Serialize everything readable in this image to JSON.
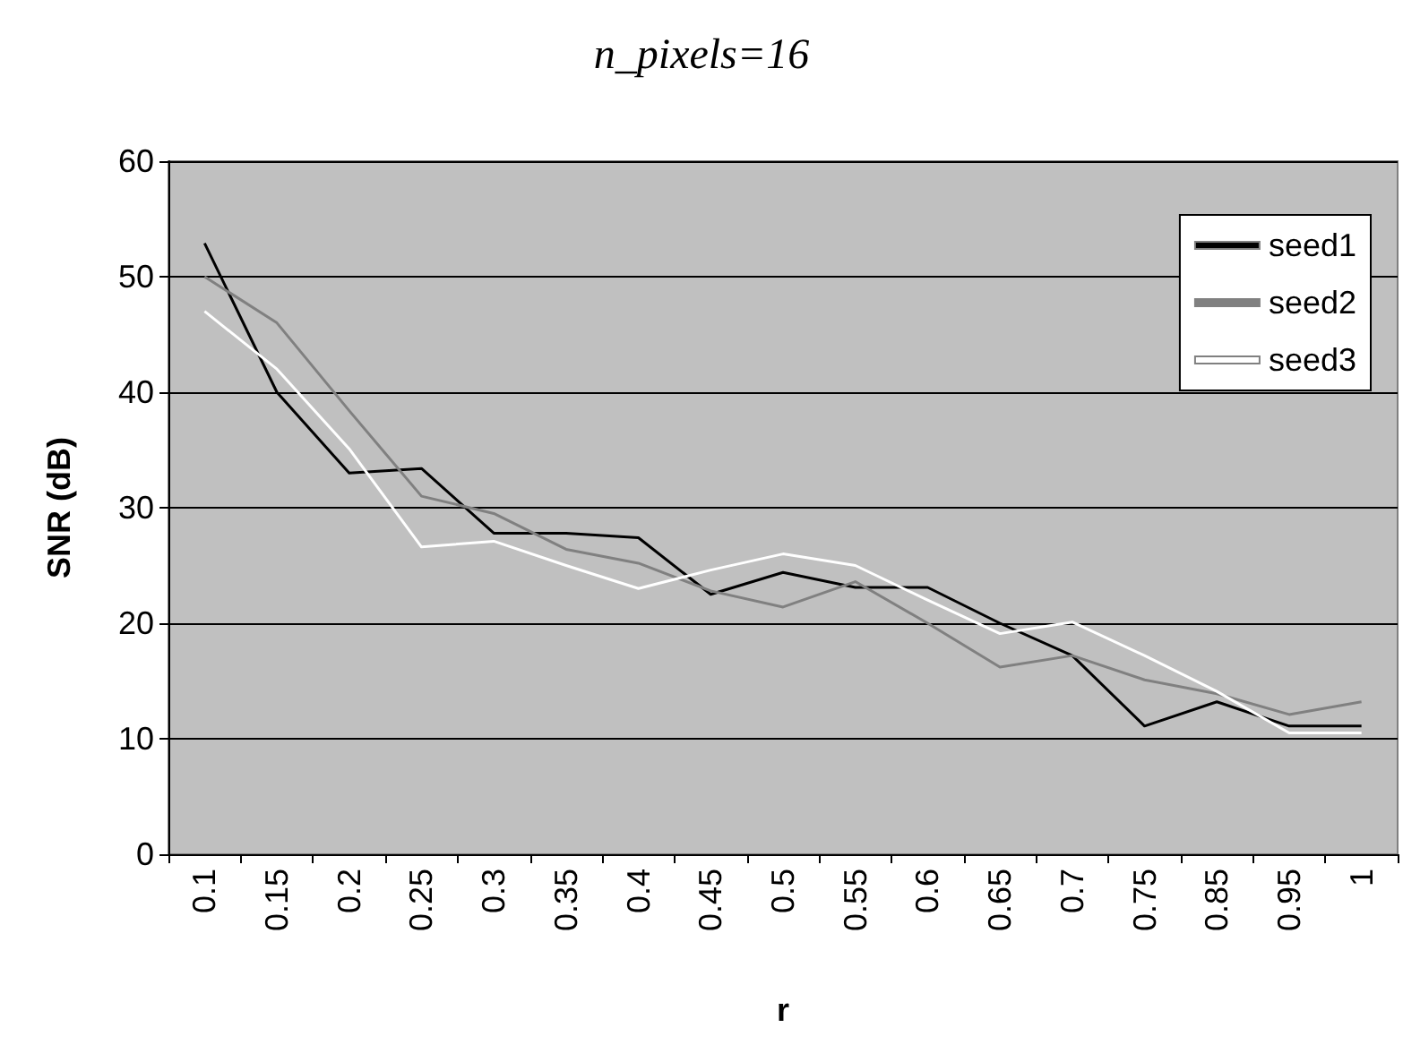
{
  "chart_data": {
    "type": "line",
    "title": "n_pixels=16",
    "xlabel": "r",
    "ylabel": "SNR (dB)",
    "categories": [
      "0.1",
      "0.15",
      "0.2",
      "0.25",
      "0.3",
      "0.35",
      "0.4",
      "0.45",
      "0.5",
      "0.55",
      "0.6",
      "0.65",
      "0.7",
      "0.75",
      "0.85",
      "0.95",
      "1"
    ],
    "series": [
      {
        "name": "seed1",
        "color": "#000000",
        "values": [
          52.9,
          40.0,
          33.0,
          33.4,
          27.8,
          27.8,
          27.4,
          22.5,
          24.4,
          23.1,
          23.1,
          20.0,
          17.2,
          11.1,
          13.2,
          11.1,
          11.1
        ]
      },
      {
        "name": "seed2",
        "color": "#808080",
        "values": [
          50.0,
          46.0,
          38.4,
          31.0,
          29.5,
          26.4,
          25.2,
          22.8,
          21.4,
          23.6,
          20.0,
          16.2,
          17.2,
          15.1,
          13.9,
          12.1,
          13.2
        ]
      },
      {
        "name": "seed3",
        "color": "#ffffff",
        "values": [
          47.0,
          42.0,
          35.1,
          26.6,
          27.1,
          25.0,
          23.0,
          24.6,
          26.0,
          25.0,
          22.0,
          19.1,
          20.1,
          17.2,
          14.1,
          10.5,
          10.5
        ]
      }
    ],
    "ylim": [
      0,
      60
    ],
    "yticks": [
      0,
      10,
      20,
      30,
      40,
      50,
      60
    ],
    "grid": "y",
    "legend": "top right",
    "marker": "none",
    "line_style": "solid"
  }
}
